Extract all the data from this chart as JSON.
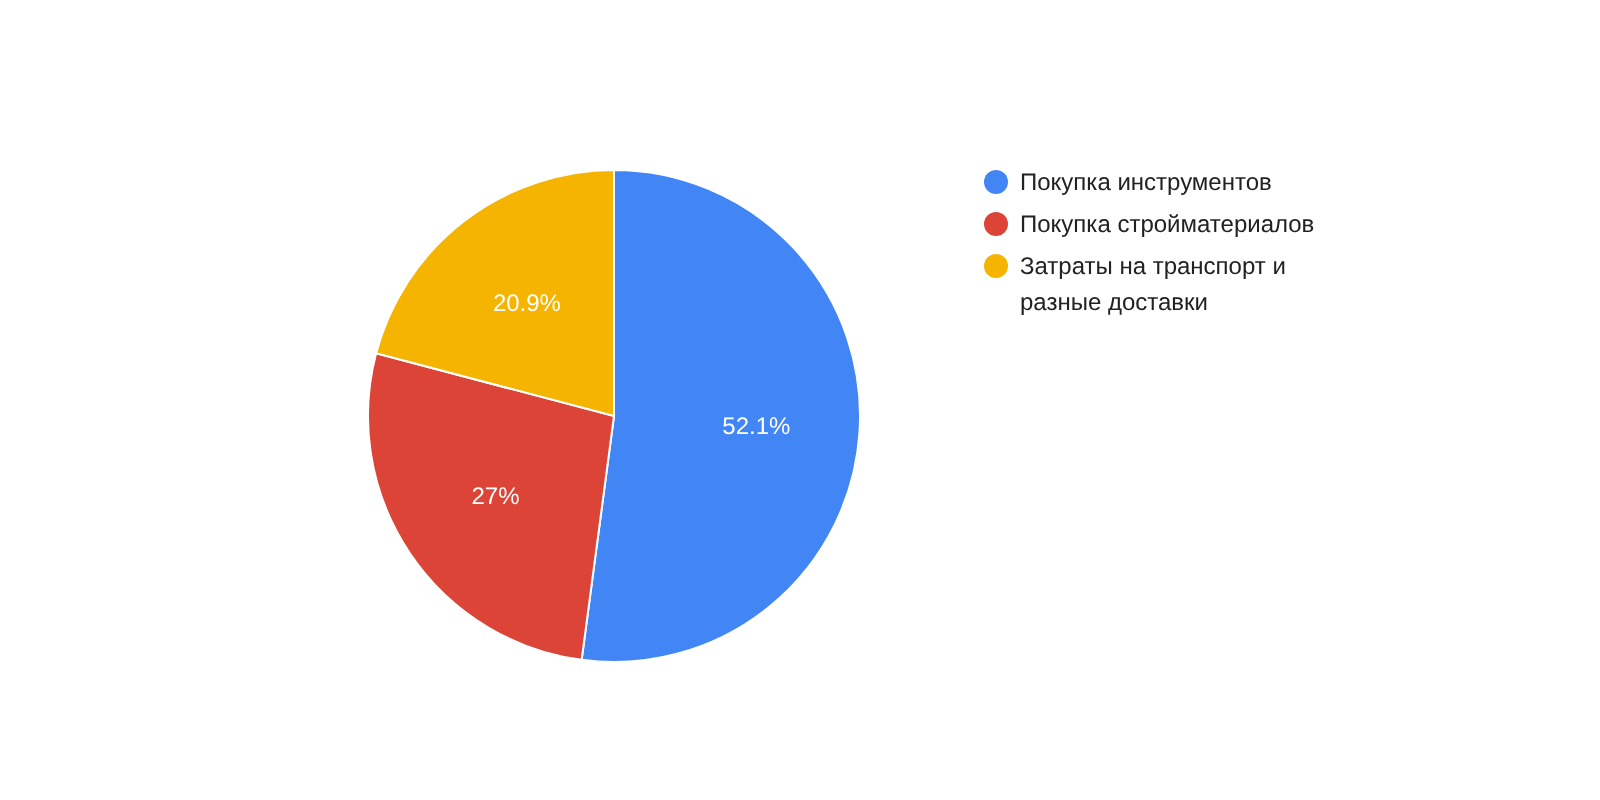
{
  "chart_data": {
    "type": "pie",
    "categories": [
      "Покупка инструментов",
      "Покупка стройматериалов",
      "Затраты на транспорт и разные доставки"
    ],
    "values": [
      52.1,
      27,
      20.9
    ],
    "colors": [
      "#4285f4",
      "#db4437",
      "#f4b400"
    ],
    "value_labels": [
      "52.1%",
      "27%",
      "20.9%"
    ],
    "legend": "right"
  }
}
